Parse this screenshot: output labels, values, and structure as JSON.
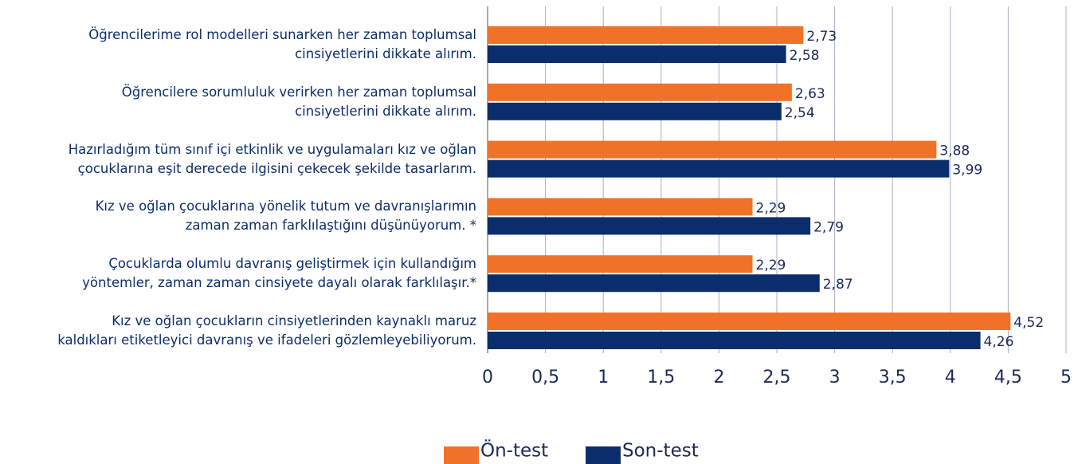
{
  "chart_data": {
    "type": "bar",
    "orientation": "horizontal",
    "categories": [
      "Öğrencilerime rol modelleri sunarken her zaman toplumsal\ncinsiyetlerini dikkate alırım.",
      "Öğrencilere sorumluluk verirken her zaman toplumsal\ncinsiyetlerini dikkate alırım.",
      "Hazırladığım tüm sınıf içi etkinlik ve uygulamaları kız ve oğlan\nçocuklarına eşit derecede ilgisini çekecek şekilde tasarlarım.",
      "Kız ve oğlan çocuklarına yönelik tutum ve davranışlarımın\nzaman zaman farklılaştığını düşünüyorum. *",
      "Çocuklarda olumlu davranış geliştirmek için kullandığım\nyöntemler, zaman zaman cinsiyete dayalı olarak farklılaşır.*",
      "Kız ve oğlan çocukların cinsiyetlerinden kaynaklı maruz\nkaldıkları etiketleyici davranış ve ifadeleri gözlemleyebiliyorum."
    ],
    "series": [
      {
        "name": "Ön-test",
        "color": "#f07228",
        "values": [
          2.73,
          2.63,
          3.88,
          2.29,
          2.29,
          4.52
        ],
        "value_labels": [
          "2,73",
          "2,63",
          "3,88",
          "2,29",
          "2,29",
          "4,52"
        ]
      },
      {
        "name": "Son-test",
        "color": "#0c2d6b",
        "values": [
          2.58,
          2.54,
          3.99,
          2.79,
          2.87,
          4.26
        ],
        "value_labels": [
          "2,58",
          "2,54",
          "3,99",
          "2,79",
          "2,87",
          "4,26"
        ]
      }
    ],
    "xlim": [
      0,
      5
    ],
    "xticks": [
      0,
      {
        "value": 0.5,
        "label": "0,5"
      },
      1,
      {
        "value": 1.5,
        "label": "1,5"
      },
      2,
      {
        "value": 2.5,
        "label": "2,5"
      },
      3,
      {
        "value": 3.5,
        "label": "3,5"
      },
      4,
      {
        "value": 4.5,
        "label": "4,5"
      },
      5
    ],
    "grid": true,
    "legend": "bottom"
  }
}
